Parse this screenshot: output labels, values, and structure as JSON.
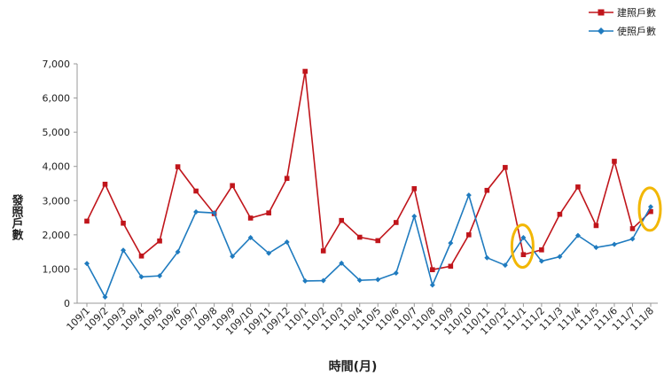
{
  "chart_data": {
    "type": "line",
    "title": "",
    "xlabel": "時間(月)",
    "ylabel": "發照戶數",
    "ylim": [
      0,
      7000
    ],
    "yticks": [
      0,
      1000,
      2000,
      3000,
      4000,
      5000,
      6000,
      7000
    ],
    "ytick_labels": [
      "0",
      "1,000",
      "2,000",
      "3,000",
      "4,000",
      "5,000",
      "6,000",
      "7,000"
    ],
    "grid": false,
    "legend_position": "top-right",
    "categories": [
      "109/1",
      "109/2",
      "109/3",
      "109/4",
      "109/5",
      "109/6",
      "109/7",
      "109/8",
      "109/9",
      "109/10",
      "109/11",
      "109/12",
      "110/1",
      "110/2",
      "110/3",
      "110/4",
      "110/5",
      "110/6",
      "110/7",
      "110/8",
      "110/9",
      "110/10",
      "110/11",
      "110/12",
      "111/1",
      "111/2",
      "111/3",
      "111/4",
      "111/5",
      "111/6",
      "111/7",
      "111/8"
    ],
    "series": [
      {
        "name": "建照戶數",
        "color": "#c0151b",
        "marker": "square",
        "values": [
          2400,
          3480,
          2340,
          1380,
          1820,
          3990,
          3280,
          2620,
          3440,
          2490,
          2640,
          3650,
          6780,
          1530,
          2420,
          1930,
          1830,
          2360,
          3350,
          980,
          1080,
          2000,
          3300,
          3970,
          1420,
          1560,
          2600,
          3400,
          2270,
          4150,
          2180,
          2680
        ]
      },
      {
        "name": "使照戶數",
        "color": "#1f7bbf",
        "marker": "diamond",
        "values": [
          1160,
          180,
          1550,
          770,
          800,
          1500,
          2670,
          2640,
          1370,
          1920,
          1460,
          1790,
          650,
          660,
          1170,
          670,
          690,
          880,
          2540,
          530,
          1760,
          3160,
          1330,
          1110,
          1920,
          1230,
          1360,
          1980,
          1630,
          1720,
          1880,
          2820
        ]
      }
    ],
    "annotations": [
      {
        "type": "circle",
        "color": "#f2b705",
        "target_category": "111/1"
      },
      {
        "type": "circle",
        "color": "#f2b705",
        "target_category": "111/8"
      }
    ]
  }
}
